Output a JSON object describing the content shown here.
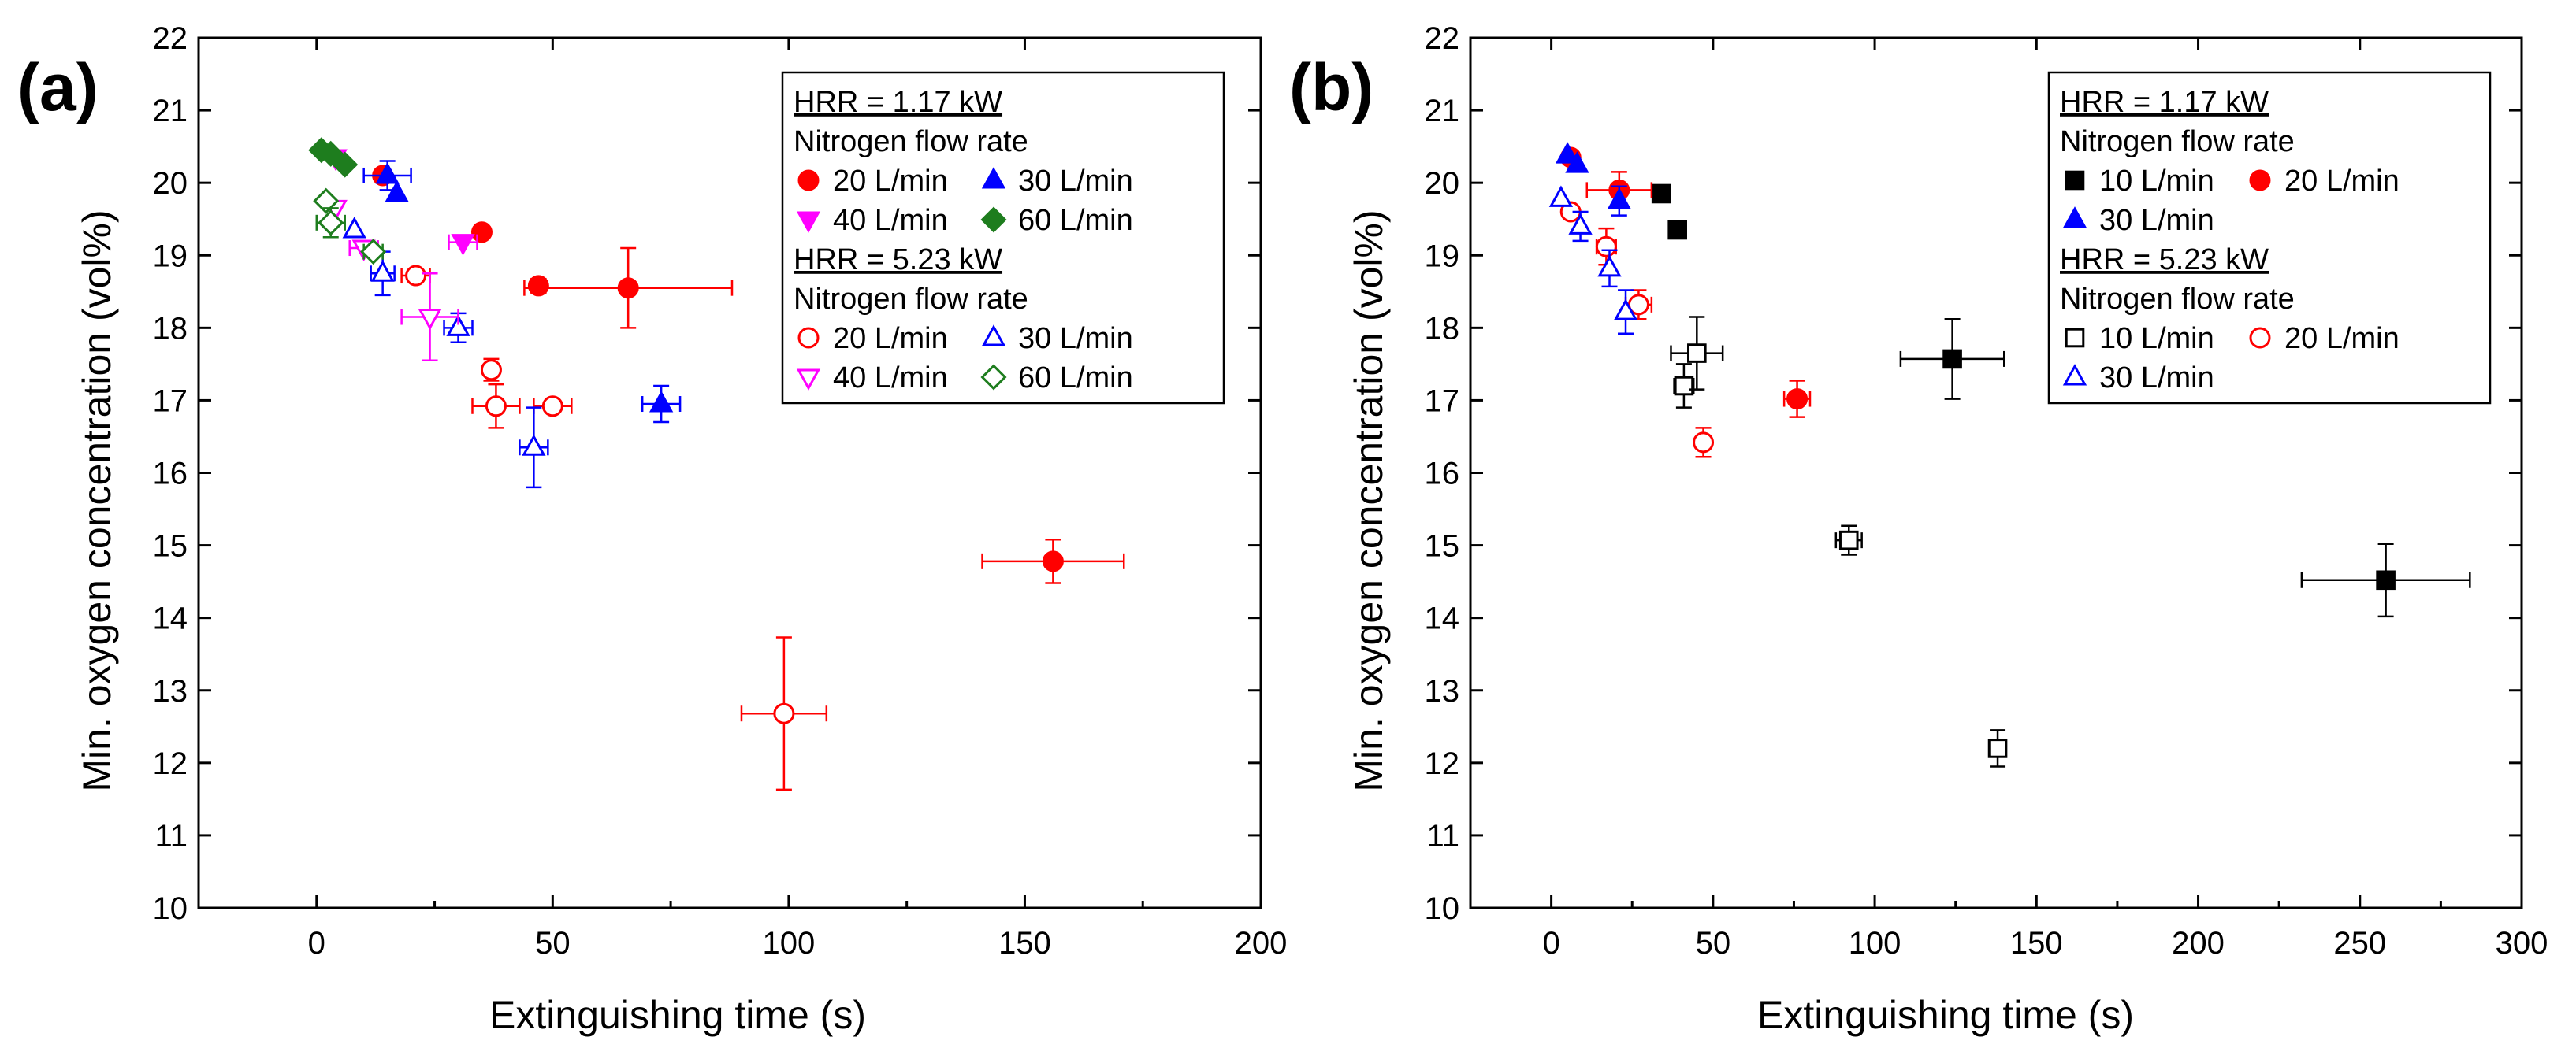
{
  "chart_data": [
    {
      "panel": "(a)",
      "type": "scatter",
      "xlabel": "Extinguishing time (s)",
      "ylabel": "Min. oxygen concentration (vol%)",
      "xlim": [
        -25,
        200
      ],
      "ylim": [
        10,
        22
      ],
      "xticks": [
        0,
        50,
        100,
        150,
        200
      ],
      "yticks": [
        10,
        11,
        12,
        13,
        14,
        15,
        16,
        17,
        18,
        19,
        20,
        21,
        22
      ],
      "legend": {
        "headers": [
          "HRR = 1.17 kW",
          "Nitrogen flow rate",
          "HRR = 5.23 kW",
          "Nitrogen flow rate"
        ],
        "rows": [
          [
            {
              "label": "20 L/min",
              "series": 0
            },
            {
              "label": "30 L/min",
              "series": 1
            }
          ],
          [
            {
              "label": "40 L/min",
              "series": 2
            },
            {
              "label": "60 L/min",
              "series": 3
            }
          ],
          [
            {
              "label": "20 L/min",
              "series": 4
            },
            {
              "label": "30 L/min",
              "series": 5
            }
          ],
          [
            {
              "label": "40 L/min",
              "series": 6
            },
            {
              "label": "60 L/min",
              "series": 7
            }
          ]
        ]
      },
      "series": [
        {
          "name": "HRR = 1.17 kW, 20 L/min",
          "marker": "circle",
          "filled": true,
          "color": "#ff0000",
          "points": [
            {
              "x": 14,
              "y": 20.1,
              "xerr": 0,
              "yerr": 0
            },
            {
              "x": 35,
              "y": 19.32,
              "xerr": 0,
              "yerr": 0
            },
            {
              "x": 47,
              "y": 18.58,
              "xerr": 1.5,
              "yerr": 0
            },
            {
              "x": 66,
              "y": 18.55,
              "xerr": 22,
              "yerr": 0.55
            },
            {
              "x": 156,
              "y": 14.78,
              "xerr": 15,
              "yerr": 0.3
            }
          ]
        },
        {
          "name": "HRR = 1.17 kW, 30 L/min",
          "marker": "triangle-up",
          "filled": true,
          "color": "#0000ff",
          "points": [
            {
              "x": 15,
              "y": 20.1,
              "xerr": 5,
              "yerr": 0.2
            },
            {
              "x": 17,
              "y": 19.85,
              "xerr": 0,
              "yerr": 0
            },
            {
              "x": 73,
              "y": 16.95,
              "xerr": 4,
              "yerr": 0.25
            }
          ]
        },
        {
          "name": "HRR = 1.17 kW, 40 L/min",
          "marker": "triangle-down",
          "filled": true,
          "color": "#ff00ff",
          "points": [
            {
              "x": 4,
              "y": 20.35,
              "xerr": 0,
              "yerr": 0
            },
            {
              "x": 31,
              "y": 19.18,
              "xerr": 3,
              "yerr": 0
            }
          ]
        },
        {
          "name": "HRR = 1.17 kW, 60 L/min",
          "marker": "diamond",
          "filled": true,
          "color": "#1e7d1e",
          "points": [
            {
              "x": 1,
              "y": 20.45,
              "xerr": 0,
              "yerr": 0
            },
            {
              "x": 3,
              "y": 20.4,
              "xerr": 0,
              "yerr": 0
            },
            {
              "x": 6,
              "y": 20.25,
              "xerr": 0,
              "yerr": 0
            }
          ]
        },
        {
          "name": "HRR = 5.23 kW, 20 L/min",
          "marker": "circle",
          "filled": false,
          "color": "#ff0000",
          "points": [
            {
              "x": 21,
              "y": 18.72,
              "xerr": 3,
              "yerr": 0
            },
            {
              "x": 37,
              "y": 17.42,
              "xerr": 0,
              "yerr": 0.15
            },
            {
              "x": 38,
              "y": 16.92,
              "xerr": 5,
              "yerr": 0.3
            },
            {
              "x": 50,
              "y": 16.92,
              "xerr": 4,
              "yerr": 0
            },
            {
              "x": 99,
              "y": 12.68,
              "xerr": 9,
              "yerr": 1.05
            }
          ]
        },
        {
          "name": "HRR = 5.23 kW, 30 L/min",
          "marker": "triangle-up",
          "filled": false,
          "color": "#0000ff",
          "points": [
            {
              "x": 8,
              "y": 19.35,
              "xerr": 0,
              "yerr": 0
            },
            {
              "x": 14,
              "y": 18.75,
              "xerr": 2.5,
              "yerr": 0.3
            },
            {
              "x": 30,
              "y": 18.0,
              "xerr": 3,
              "yerr": 0.2
            },
            {
              "x": 46,
              "y": 16.35,
              "xerr": 3,
              "yerr": 0.55
            }
          ]
        },
        {
          "name": "HRR = 5.23 kW, 40 L/min",
          "marker": "triangle-down",
          "filled": false,
          "color": "#ff00ff",
          "points": [
            {
              "x": 4,
              "y": 19.65,
              "xerr": 0,
              "yerr": 0
            },
            {
              "x": 10,
              "y": 19.1,
              "xerr": 3,
              "yerr": 0
            },
            {
              "x": 24,
              "y": 18.15,
              "xerr": 6,
              "yerr": 0.6
            }
          ]
        },
        {
          "name": "HRR = 5.23 kW, 60 L/min",
          "marker": "diamond",
          "filled": false,
          "color": "#1e7d1e",
          "points": [
            {
              "x": 2,
              "y": 19.75,
              "xerr": 0,
              "yerr": 0
            },
            {
              "x": 3,
              "y": 19.45,
              "xerr": 3,
              "yerr": 0.2
            },
            {
              "x": 12,
              "y": 19.05,
              "xerr": 2,
              "yerr": 0
            }
          ]
        }
      ]
    },
    {
      "panel": "(b)",
      "type": "scatter",
      "xlabel": "Extinguishing time (s)",
      "ylabel": "Min. oxygen concentration (vol%)",
      "xlim": [
        -25,
        300
      ],
      "ylim": [
        10,
        22
      ],
      "xticks": [
        0,
        50,
        100,
        150,
        200,
        250,
        300
      ],
      "yticks": [
        10,
        11,
        12,
        13,
        14,
        15,
        16,
        17,
        18,
        19,
        20,
        21,
        22
      ],
      "legend": {
        "headers": [
          "HRR = 1.17 kW",
          "Nitrogen flow rate",
          "HRR = 5.23 kW",
          "Nitrogen flow rate"
        ],
        "rows": [
          [
            {
              "label": "10 L/min",
              "series": 0
            },
            {
              "label": "20 L/min",
              "series": 1
            }
          ],
          [
            {
              "label": "30 L/min",
              "series": 2
            }
          ],
          [
            {
              "label": "10 L/min",
              "series": 3
            },
            {
              "label": "20 L/min",
              "series": 4
            }
          ],
          [
            {
              "label": "30 L/min",
              "series": 5
            }
          ]
        ]
      },
      "series": [
        {
          "name": "HRR = 1.17 kW, 10 L/min",
          "marker": "square",
          "filled": true,
          "color": "#000000",
          "points": [
            {
              "x": 34,
              "y": 19.85,
              "xerr": 0,
              "yerr": 0
            },
            {
              "x": 39,
              "y": 19.35,
              "xerr": 0,
              "yerr": 0
            },
            {
              "x": 124,
              "y": 17.57,
              "xerr": 16,
              "yerr": 0.55
            },
            {
              "x": 258,
              "y": 14.52,
              "xerr": 26,
              "yerr": 0.5
            }
          ]
        },
        {
          "name": "HRR = 1.17 kW, 20 L/min",
          "marker": "circle",
          "filled": true,
          "color": "#ff0000",
          "points": [
            {
              "x": 6,
              "y": 20.35,
              "xerr": 0,
              "yerr": 0
            },
            {
              "x": 21,
              "y": 19.9,
              "xerr": 10,
              "yerr": 0.25
            },
            {
              "x": 76,
              "y": 17.02,
              "xerr": 4,
              "yerr": 0.25
            }
          ]
        },
        {
          "name": "HRR = 1.17 kW, 30 L/min",
          "marker": "triangle-up",
          "filled": true,
          "color": "#0000ff",
          "points": [
            {
              "x": 5,
              "y": 20.38,
              "xerr": 0,
              "yerr": 0
            },
            {
              "x": 8,
              "y": 20.25,
              "xerr": 0,
              "yerr": 0
            },
            {
              "x": 21,
              "y": 19.75,
              "xerr": 0,
              "yerr": 0.2
            }
          ]
        },
        {
          "name": "HRR = 5.23 kW, 10 L/min",
          "marker": "square",
          "filled": false,
          "color": "#000000",
          "points": [
            {
              "x": 41,
              "y": 17.2,
              "xerr": 3,
              "yerr": 0.3
            },
            {
              "x": 45,
              "y": 17.65,
              "xerr": 8,
              "yerr": 0.5
            },
            {
              "x": 92,
              "y": 15.07,
              "xerr": 4,
              "yerr": 0.2
            },
            {
              "x": 138,
              "y": 12.2,
              "xerr": 2,
              "yerr": 0.25
            }
          ]
        },
        {
          "name": "HRR = 5.23 kW, 20 L/min",
          "marker": "circle",
          "filled": false,
          "color": "#ff0000",
          "points": [
            {
              "x": 6,
              "y": 19.6,
              "xerr": 0,
              "yerr": 0
            },
            {
              "x": 17,
              "y": 19.12,
              "xerr": 3,
              "yerr": 0.25
            },
            {
              "x": 27,
              "y": 18.32,
              "xerr": 4,
              "yerr": 0.2
            },
            {
              "x": 47,
              "y": 16.42,
              "xerr": 0,
              "yerr": 0.2
            }
          ]
        },
        {
          "name": "HRR = 5.23 kW, 30 L/min",
          "marker": "triangle-up",
          "filled": false,
          "color": "#0000ff",
          "points": [
            {
              "x": 3,
              "y": 19.78,
              "xerr": 0,
              "yerr": 0
            },
            {
              "x": 9,
              "y": 19.4,
              "xerr": 0,
              "yerr": 0.2
            },
            {
              "x": 18,
              "y": 18.82,
              "xerr": 0,
              "yerr": 0.25
            },
            {
              "x": 23,
              "y": 18.22,
              "xerr": 0,
              "yerr": 0.3
            }
          ]
        }
      ]
    }
  ]
}
